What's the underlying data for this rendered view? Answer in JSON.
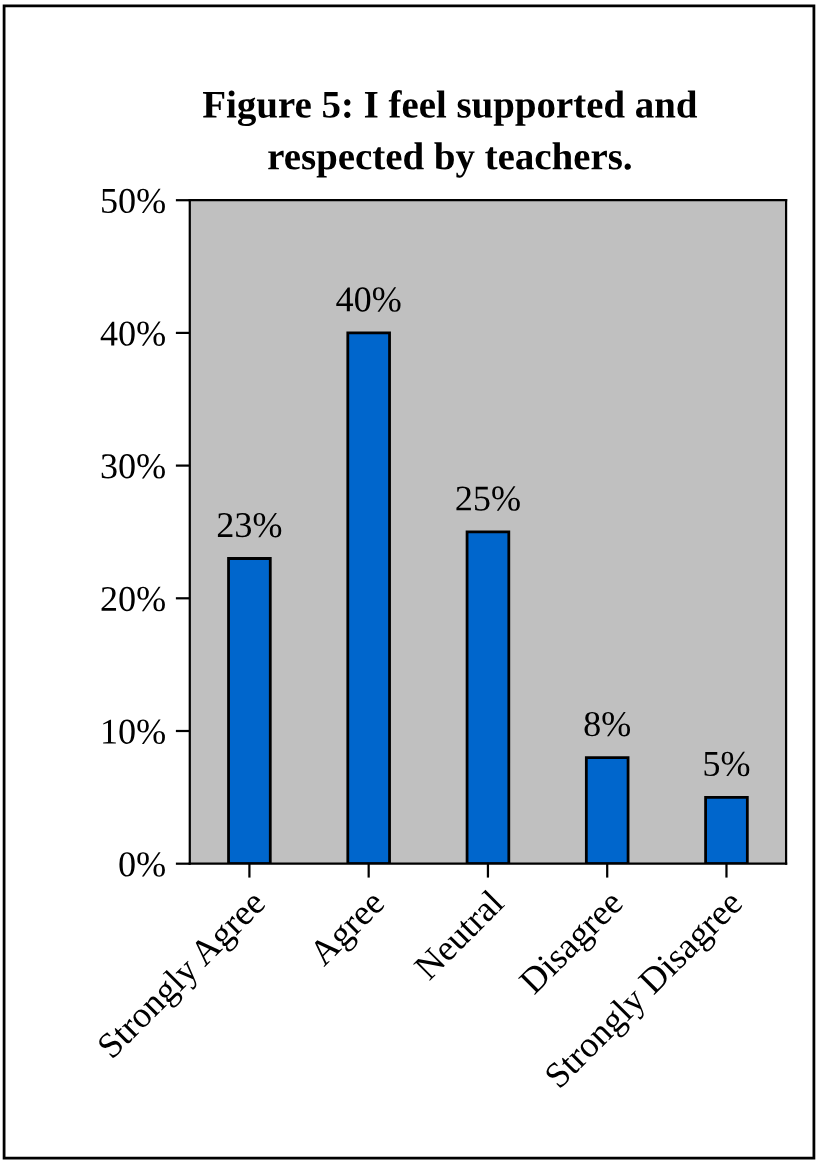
{
  "chart_data": {
    "type": "bar",
    "title": "Figure 5: I feel supported and\nrespected by teachers.",
    "categories": [
      "Strongly Agree",
      "Agree",
      "Neutral",
      "Disagree",
      "Strongly Disagree"
    ],
    "values": [
      23,
      40,
      25,
      8,
      5
    ],
    "value_labels": [
      "23%",
      "40%",
      "25%",
      "8%",
      "5%"
    ],
    "color": "#0066cc",
    "ylim": [
      0,
      50
    ],
    "yticks": [
      {
        "value": 0,
        "label": "0%"
      },
      {
        "value": 10,
        "label": "10%"
      },
      {
        "value": 20,
        "label": "20%"
      },
      {
        "value": 30,
        "label": "30%"
      },
      {
        "value": 40,
        "label": "40%"
      },
      {
        "value": 50,
        "label": "50%"
      }
    ],
    "grid": false,
    "legend": false
  }
}
